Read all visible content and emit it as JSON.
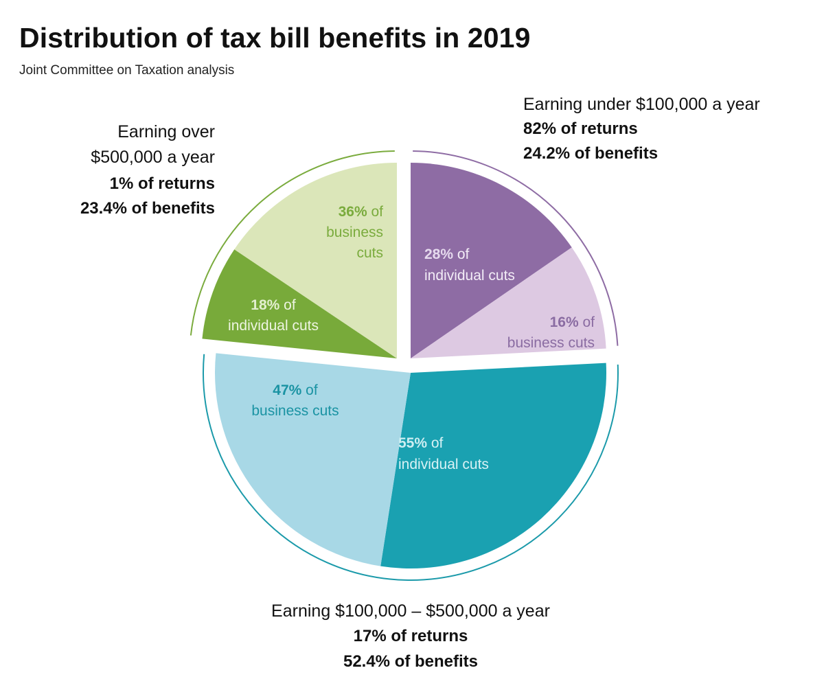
{
  "header": {
    "title": "Distribution of tax bill benefits in 2019",
    "subtitle": "Joint Committee on Taxation analysis"
  },
  "chart_data": {
    "type": "pie",
    "title": "Distribution of tax bill benefits in 2019",
    "subtitle": "Joint Committee on Taxation analysis",
    "unit": "percent of benefits",
    "groups": [
      {
        "id": "under",
        "label_line1": "Earning under $100,000 a year",
        "returns": "82% of returns",
        "benefits": "24.2% of benefits",
        "benefit_pct": 24.2,
        "color_ring": "#8e6ca4",
        "slices": [
          {
            "id": "under-ind",
            "value": 28,
            "pct": "28%",
            "text1": " of",
            "text2": "individual cuts",
            "fill": "#8e6ca4",
            "label_pct_color": "#e6daee",
            "label_color": "#f3edf7"
          },
          {
            "id": "under-bus",
            "value": 16,
            "pct": "16%",
            "text1": " of",
            "text2": "business cuts",
            "fill": "#ddc9e2",
            "label_pct_color": "#8a6ca2",
            "label_color": "#8a6ca2"
          }
        ]
      },
      {
        "id": "mid",
        "label_line1": "Earning $100,000 – $500,000 a year",
        "returns": "17% of returns",
        "benefits": "52.4% of benefits",
        "benefit_pct": 52.4,
        "color_ring": "#1b9aaa",
        "slices": [
          {
            "id": "mid-ind",
            "value": 55,
            "pct": "55%",
            "text1": " of",
            "text2": "individual cuts",
            "fill": "#1aa1b1",
            "label_pct_color": "#cdeef2",
            "label_color": "#d8f2f5"
          },
          {
            "id": "mid-bus",
            "value": 47,
            "pct": "47%",
            "text1": " of",
            "text2": "business cuts",
            "fill": "#a8d8e6",
            "label_pct_color": "#1a93a3",
            "label_color": "#1a93a3"
          }
        ]
      },
      {
        "id": "over",
        "label_line1": "Earning over",
        "label_line2": "$500,000 a year",
        "returns": "1% of returns",
        "benefits": "23.4% of benefits",
        "benefit_pct": 23.4,
        "color_ring": "#7aab3d",
        "slices": [
          {
            "id": "over-ind",
            "value": 18,
            "pct": "18%",
            "text1": " of",
            "text2": "individual cuts",
            "fill": "#78aa3a",
            "label_pct_color": "#e3efcf",
            "label_color": "#eef5e2"
          },
          {
            "id": "over-bus",
            "value": 36,
            "pct": "36%",
            "text1": " of",
            "text3": "cuts",
            "text2": "business",
            "fill": "#dbe6b9",
            "label_pct_color": "#7aab3d",
            "label_color": "#7aab3d"
          }
        ]
      }
    ]
  }
}
